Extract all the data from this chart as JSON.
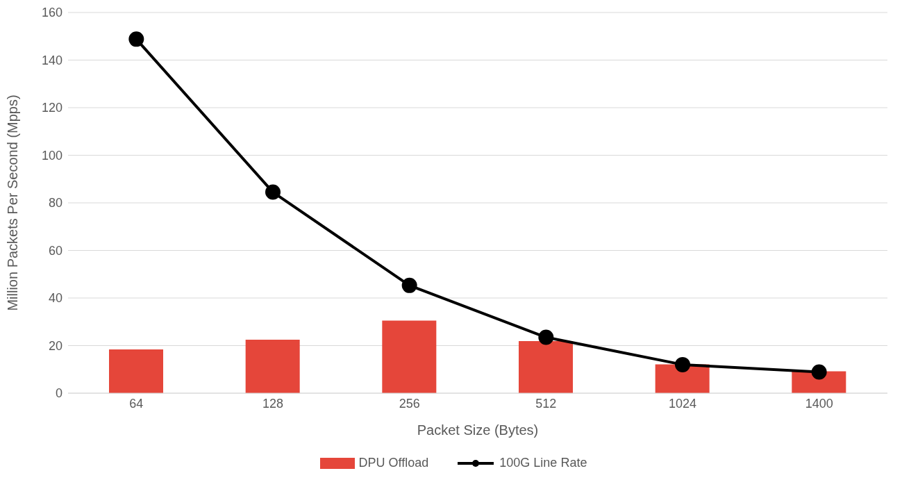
{
  "chart_data": {
    "type": "bar",
    "xlabel": "Packet Size (Bytes)",
    "ylabel": "Million Packets Per Second (Mpps)",
    "categories": [
      "64",
      "128",
      "256",
      "512",
      "1024",
      "1400"
    ],
    "series": [
      {
        "name": "DPU Offload",
        "color": "#e5463a",
        "values": [
          18.4,
          22.5,
          30.5,
          21.9,
          12.1,
          9.2
        ]
      },
      {
        "name": "100G Line Rate",
        "type": "line",
        "color": "#000000",
        "values": [
          148.8,
          84.5,
          45.3,
          23.5,
          12.0,
          8.9
        ]
      }
    ],
    "ylim": [
      0,
      160
    ],
    "yticks": [
      0,
      20,
      40,
      60,
      80,
      100,
      120,
      140,
      160
    ],
    "grid": "y",
    "legend": "bottom",
    "marker": "circle",
    "line_style": "solid"
  }
}
